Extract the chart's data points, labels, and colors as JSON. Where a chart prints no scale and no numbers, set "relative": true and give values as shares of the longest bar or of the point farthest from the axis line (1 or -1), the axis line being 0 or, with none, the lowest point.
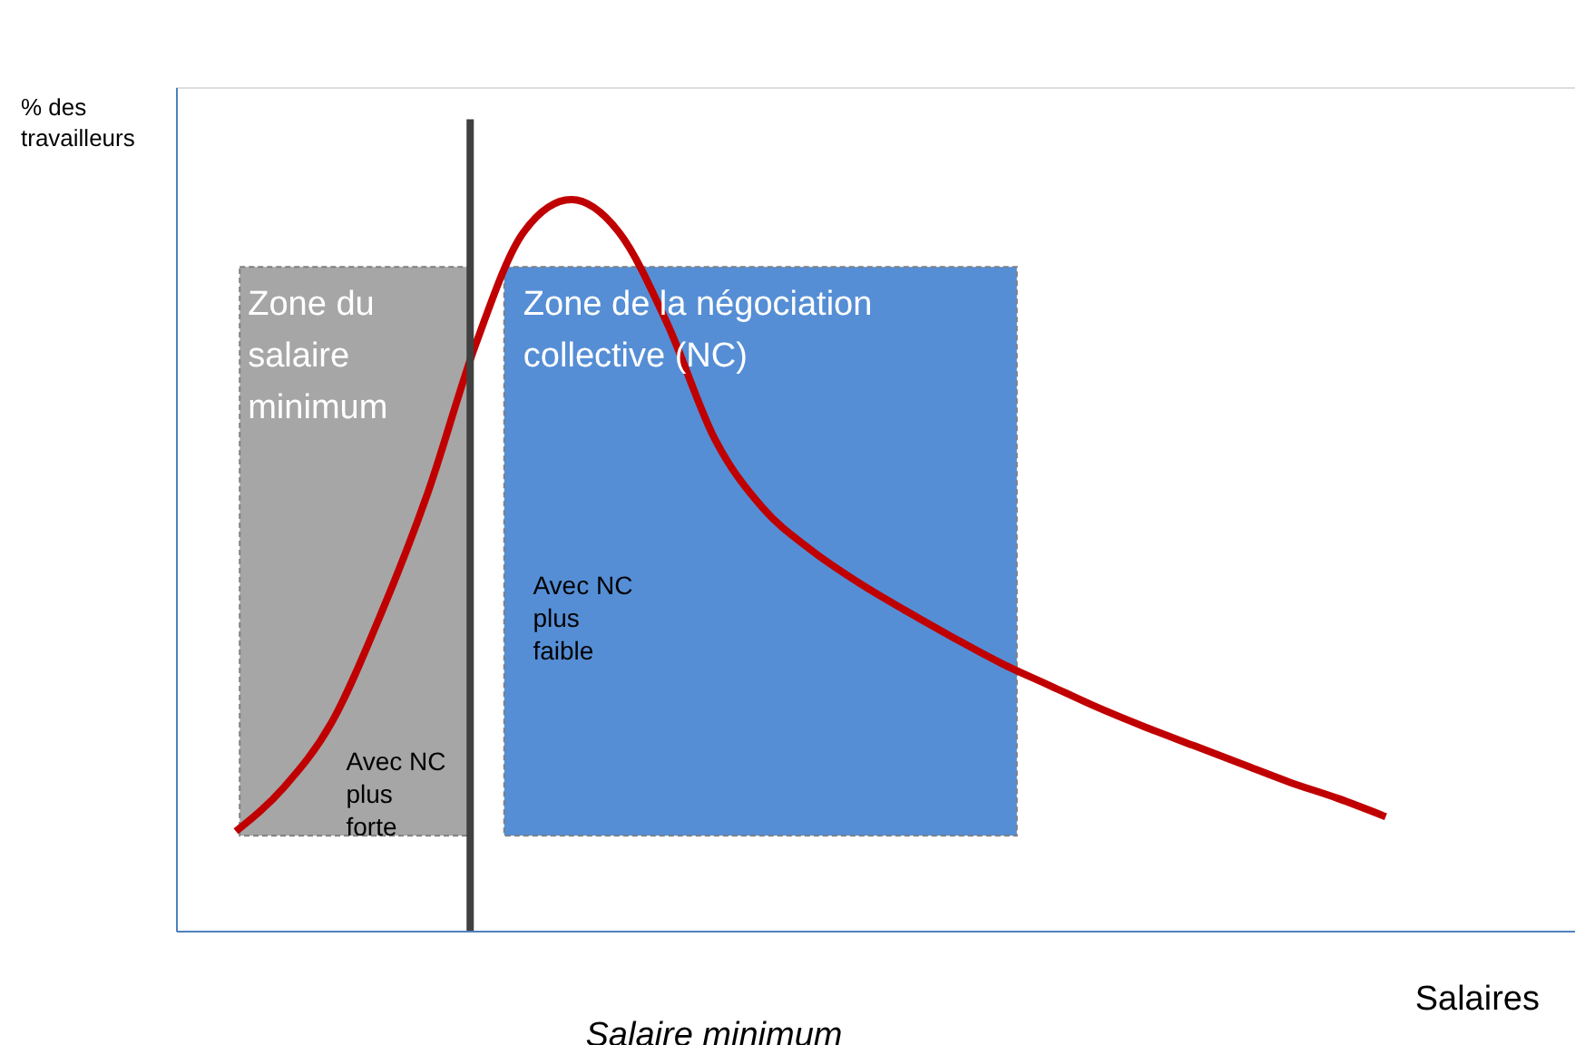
{
  "chart_data": {
    "type": "line",
    "relative": true,
    "xlabel": "Salaires",
    "ylabel": "% des travailleurs",
    "categories": [
      null,
      null,
      null,
      null,
      null,
      null,
      null,
      null,
      null,
      null,
      null,
      null,
      null,
      null,
      null,
      null,
      null,
      null,
      null,
      null,
      null,
      null,
      null,
      null,
      null
    ],
    "series": [
      {
        "color": "#c00000",
        "values": [
          0.136,
          0.196,
          0.285,
          0.429,
          0.598,
          0.801,
          0.955,
          1.0,
          0.955,
          0.831,
          0.672,
          0.578,
          0.521,
          0.476,
          0.437,
          0.4,
          0.365,
          0.335,
          0.305,
          0.278,
          0.253,
          0.228,
          0.203,
          0.181,
          0.156
        ]
      }
    ],
    "annotations": [
      "Zone du salaire minimum",
      "Zone de la négociation collective (NC)",
      "Avec NC plus faible",
      "Avec NC plus forte",
      "Salaire minimum"
    ],
    "legend": false,
    "grid": false,
    "marker": "none",
    "line_style": "solid"
  }
}
